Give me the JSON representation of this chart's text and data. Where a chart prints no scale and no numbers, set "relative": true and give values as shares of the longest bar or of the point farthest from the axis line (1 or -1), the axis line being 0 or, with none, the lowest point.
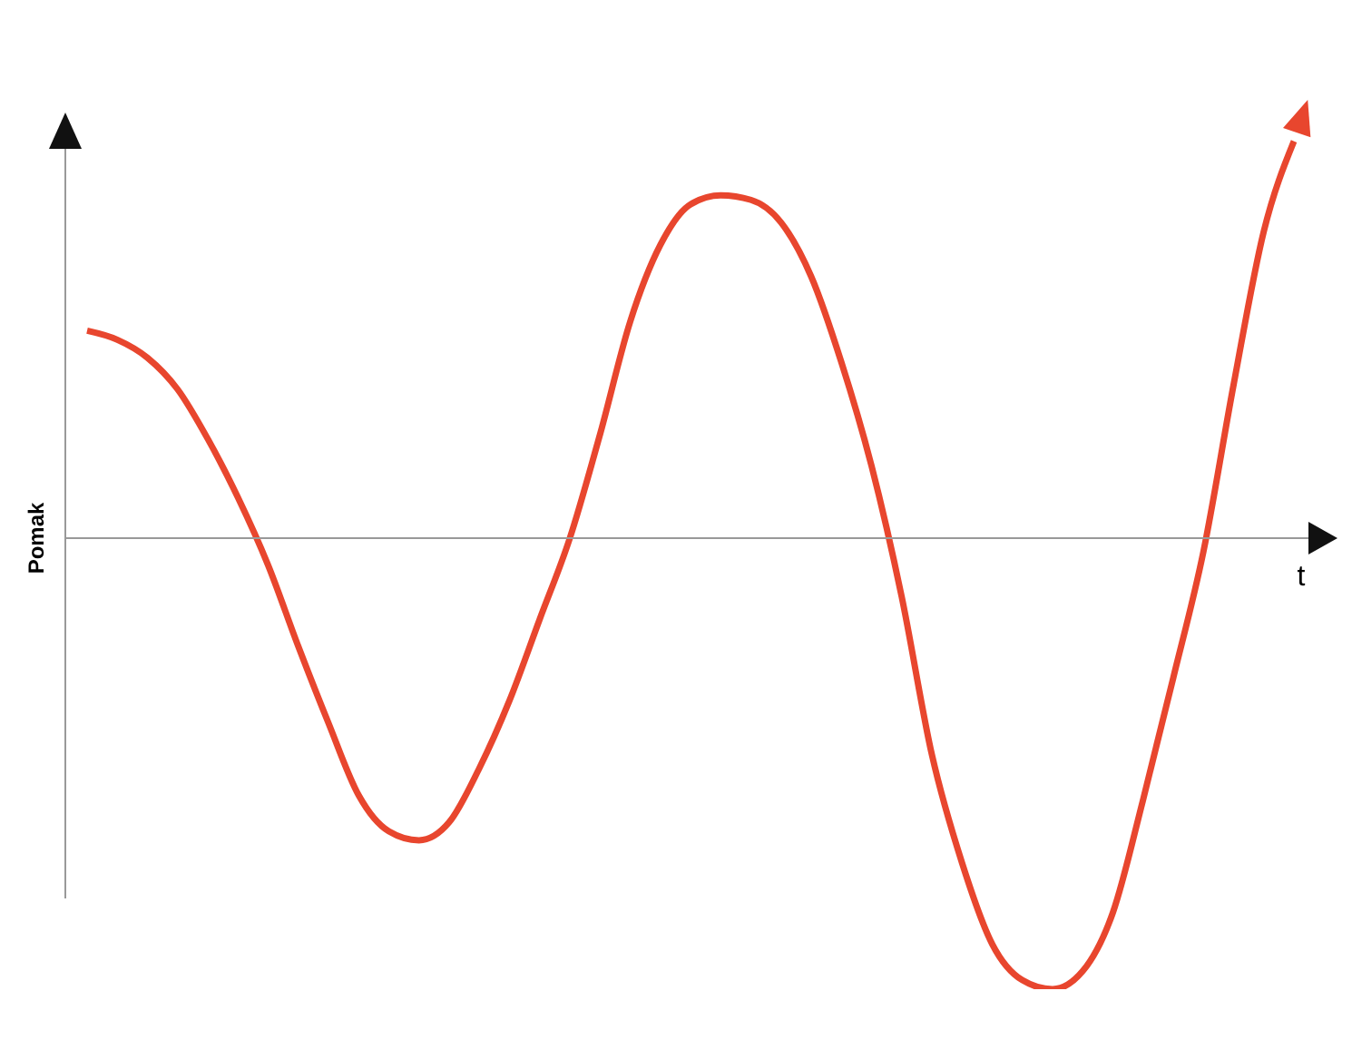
{
  "chart_data": {
    "type": "line",
    "relative": true,
    "xlabel": "t",
    "ylabel": "Pomak",
    "marker": "none",
    "legend": false,
    "grid": false,
    "categories": [
      null,
      null,
      null,
      null,
      null,
      null,
      null,
      null,
      null,
      null,
      null,
      null,
      null,
      null,
      null,
      null,
      null,
      null,
      null,
      null,
      null,
      null,
      null,
      null,
      null,
      null,
      null,
      null,
      null,
      null,
      null,
      null,
      null,
      null,
      null,
      null,
      null,
      null,
      null,
      null,
      null
    ],
    "series": [
      {
        "color": "#e8462e",
        "values": [
          0.46,
          0.44,
          0.4,
          0.33,
          0.22,
          0.09,
          -0.06,
          -0.24,
          -0.41,
          -0.57,
          -0.65,
          -0.67,
          -0.63,
          -0.51,
          -0.36,
          -0.18,
          0,
          0.23,
          0.48,
          0.65,
          0.74,
          0.76,
          0.75,
          0.7,
          0.58,
          0.39,
          0.16,
          -0.13,
          -0.48,
          -0.72,
          -0.9,
          -0.98,
          -1,
          -0.96,
          -0.83,
          -0.58,
          -0.31,
          -0.03,
          0.34,
          0.68,
          0.88
        ]
      }
    ]
  }
}
